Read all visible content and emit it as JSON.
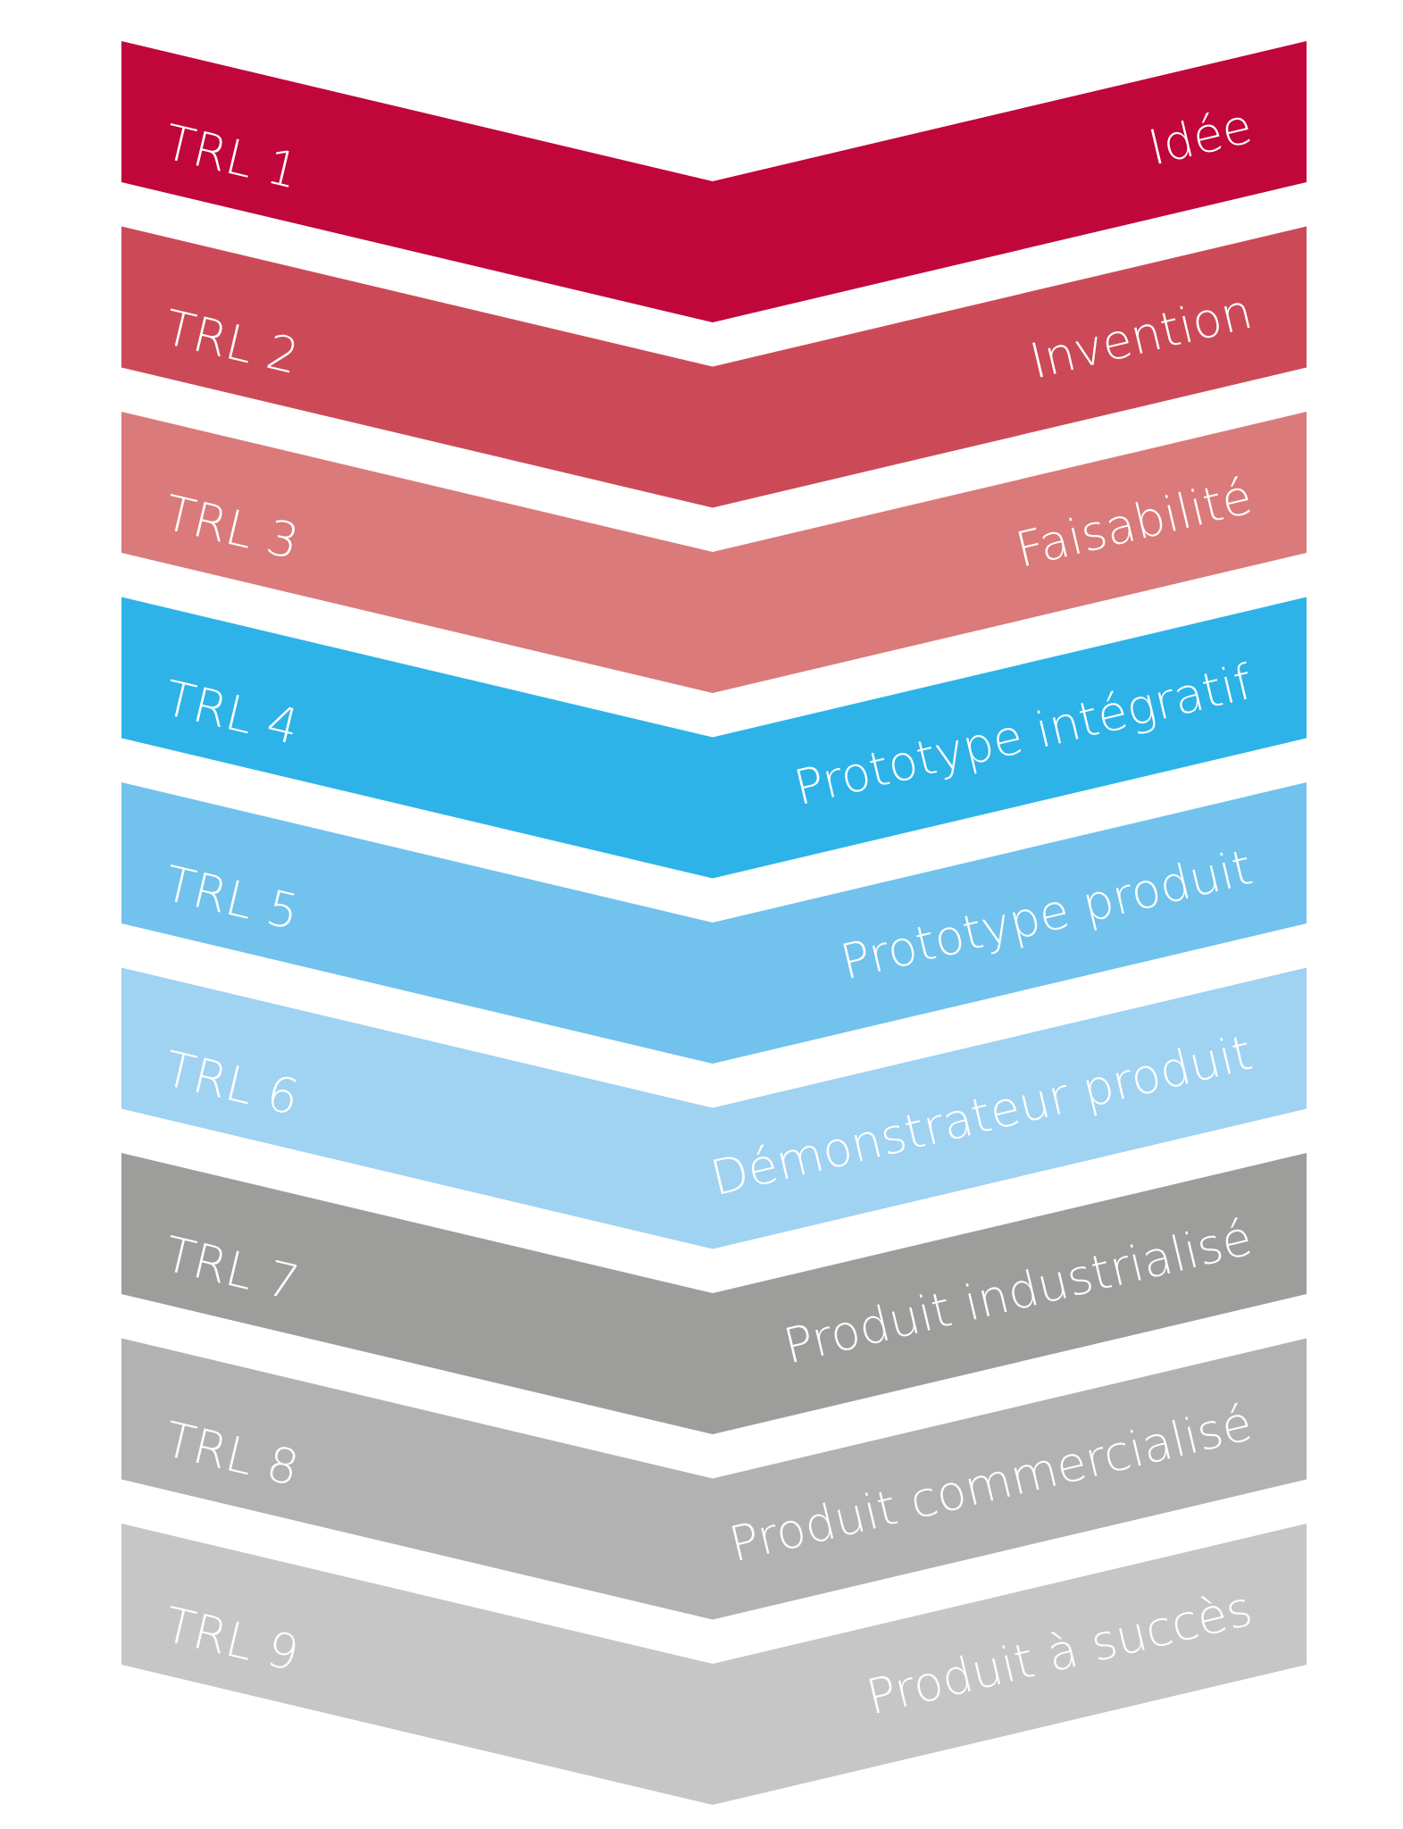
{
  "levels": [
    {
      "level": "TRL 1",
      "name": "Idée",
      "color": "#c0063a"
    },
    {
      "level": "TRL 2",
      "name": "Invention",
      "color": "#cc4a58"
    },
    {
      "level": "TRL 3",
      "name": "Faisabilité",
      "color": "#da7a7a"
    },
    {
      "level": "TRL 4",
      "name": "Prototype intégratif",
      "color": "#2db3e8"
    },
    {
      "level": "TRL 5",
      "name": "Prototype produit",
      "color": "#71c2ec"
    },
    {
      "level": "TRL 6",
      "name": "Démonstrateur produit",
      "color": "#a0d2f2"
    },
    {
      "level": "TRL 7",
      "name": "Produit industrialisé",
      "color": "#9d9d9c"
    },
    {
      "level": "TRL 8",
      "name": "Produit commercialisé",
      "color": "#b2b2b2"
    },
    {
      "level": "TRL 9",
      "name": "Produit à succès",
      "color": "#c6c6c6"
    }
  ]
}
